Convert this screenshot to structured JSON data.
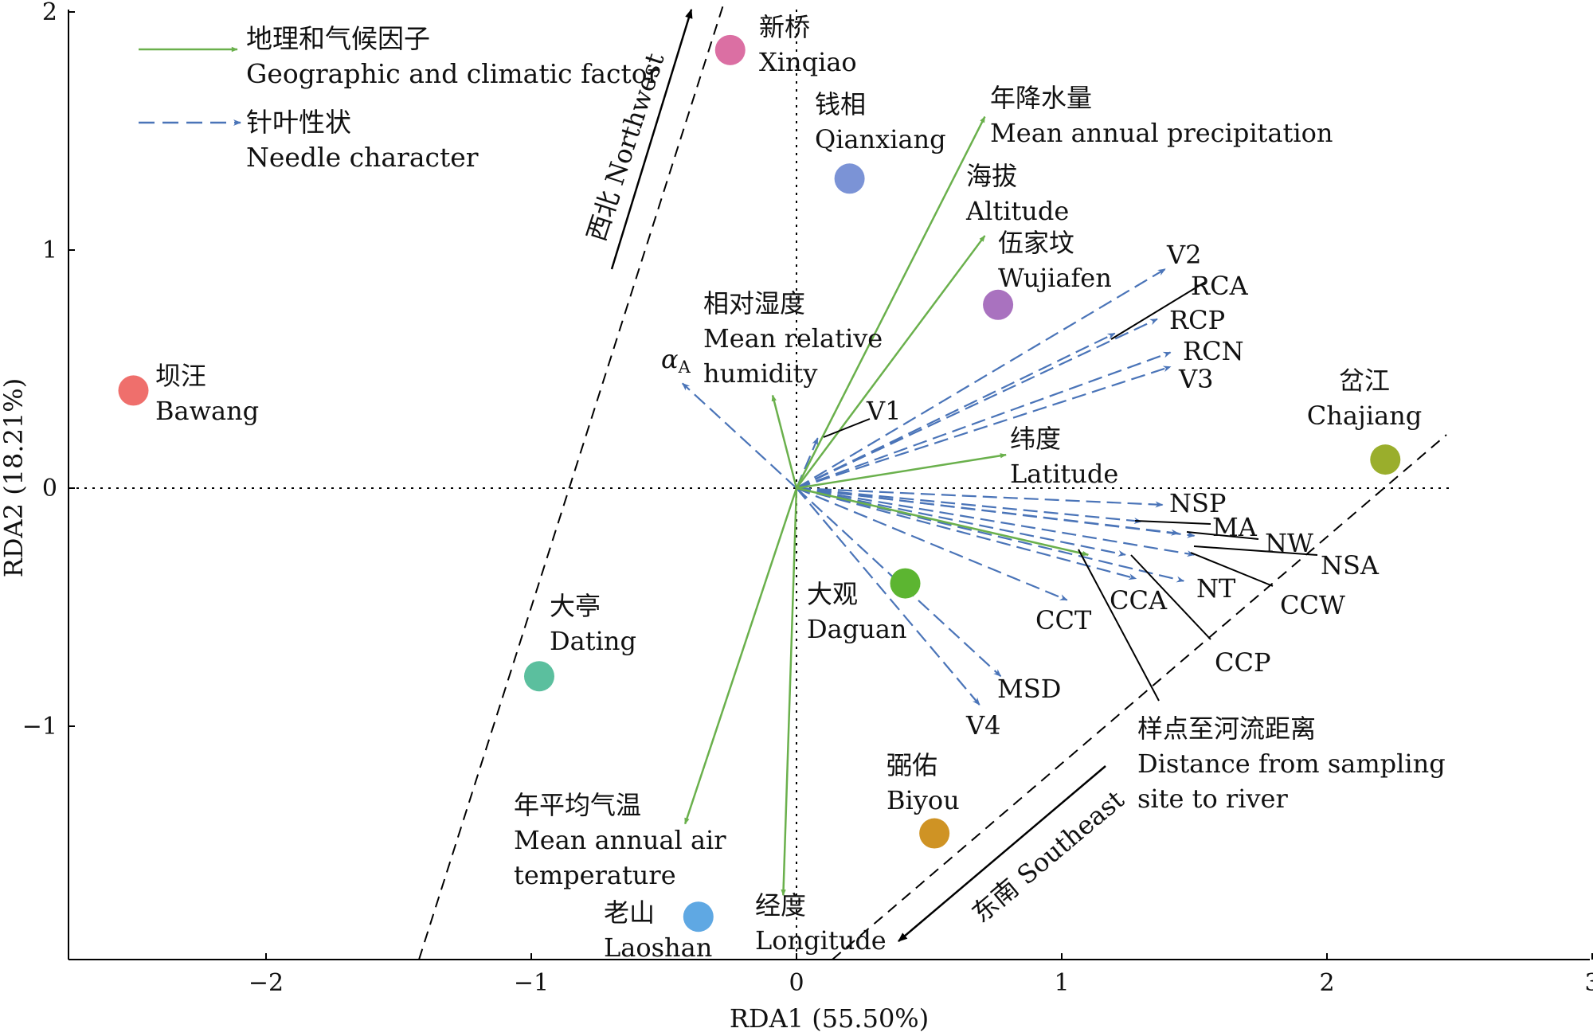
{
  "chart_data": {
    "type": "scatter",
    "subtype": "RDA biplot",
    "xlabel": "RDA1 (55.50%)",
    "ylabel": "RDA2 (18.21%)",
    "xlim": [
      -2.75,
      3.0
    ],
    "ylim": [
      -1.98,
      2.0
    ],
    "xticks": [
      -2,
      -1,
      0,
      1,
      2,
      3
    ],
    "yticks": [
      -1,
      0,
      1,
      2
    ],
    "reference_lines": "dotted lines at x=0 and y=0",
    "legend": {
      "position": "top-left",
      "entries": [
        {
          "zh": "地理和气候因子",
          "en": "Geographic and climatic factor",
          "style": "solid",
          "color": "#6ab04c"
        },
        {
          "zh": "针叶性状",
          "en": "Needle character",
          "style": "dashed",
          "color": "#4a74b8"
        }
      ]
    },
    "sites": [
      {
        "zh": "坝汪",
        "en": "Bawang",
        "x": -2.5,
        "y": 0.41,
        "color": "#ef6f6c"
      },
      {
        "zh": "新桥",
        "en": "Xinqiao",
        "x": -0.25,
        "y": 1.84,
        "color": "#db6fa3"
      },
      {
        "zh": "钱相",
        "en": "Qianxiang",
        "x": 0.2,
        "y": 1.3,
        "color": "#7b93d6"
      },
      {
        "zh": "伍家坟",
        "en": "Wujiafen",
        "x": 0.76,
        "y": 0.77,
        "color": "#a972bf"
      },
      {
        "zh": "岔江",
        "en": "Chajiang",
        "x": 2.22,
        "y": 0.12,
        "color": "#9aae2c"
      },
      {
        "zh": "大观",
        "en": "Daguan",
        "x": 0.41,
        "y": -0.4,
        "color": "#5cb531"
      },
      {
        "zh": "大亭",
        "en": "Dating",
        "x": -0.97,
        "y": -0.79,
        "color": "#5bbf9e"
      },
      {
        "zh": "弼佑",
        "en": "Biyou",
        "x": 0.52,
        "y": -1.45,
        "color": "#cf9324"
      },
      {
        "zh": "老山",
        "en": "Laoshan",
        "x": -0.37,
        "y": -1.8,
        "color": "#5fa8e3"
      }
    ],
    "factors": [
      {
        "zh": "年降水量",
        "en": "Mean annual precipitation",
        "x": 0.71,
        "y": 1.56
      },
      {
        "zh": "海拔",
        "en": "Altitude",
        "x": 0.71,
        "y": 1.06
      },
      {
        "zh": "相对湿度",
        "en": "Mean relative humidity",
        "x": -0.09,
        "y": 0.39
      },
      {
        "zh": "纬度",
        "en": "Latitude",
        "x": 0.79,
        "y": 0.14
      },
      {
        "zh": "样点至河流距离",
        "en": "Distance from sampling site to river",
        "x": 1.1,
        "y": -0.28
      },
      {
        "zh": "年平均气温",
        "en": "Mean annual air temperature",
        "x": -0.42,
        "y": -1.41
      },
      {
        "zh": "经度",
        "en": "Longitude",
        "x": -0.05,
        "y": -1.71
      }
    ],
    "needle_traits": [
      {
        "name": "αA",
        "x": -0.43,
        "y": 0.44
      },
      {
        "name": "V1",
        "x": 0.08,
        "y": 0.21
      },
      {
        "name": "V2",
        "x": 1.39,
        "y": 0.92
      },
      {
        "name": "RCA",
        "x": 1.2,
        "y": 0.65
      },
      {
        "name": "RCP",
        "x": 1.36,
        "y": 0.71
      },
      {
        "name": "RCN",
        "x": 1.41,
        "y": 0.57
      },
      {
        "name": "V3",
        "x": 1.41,
        "y": 0.51
      },
      {
        "name": "NSP",
        "x": 1.38,
        "y": -0.07
      },
      {
        "name": "MA",
        "x": 1.3,
        "y": -0.14
      },
      {
        "name": "NW",
        "x": 1.5,
        "y": -0.2
      },
      {
        "name": "NSA",
        "x": 1.44,
        "y": -0.19
      },
      {
        "name": "CCW",
        "x": 1.5,
        "y": -0.28
      },
      {
        "name": "NT",
        "x": 1.46,
        "y": -0.39
      },
      {
        "name": "CCA",
        "x": 1.28,
        "y": -0.38
      },
      {
        "name": "CCP",
        "x": 1.24,
        "y": -0.28
      },
      {
        "name": "CCT",
        "x": 1.02,
        "y": -0.47
      },
      {
        "name": "MSD",
        "x": 0.77,
        "y": -0.79
      },
      {
        "name": "V4",
        "x": 0.69,
        "y": -0.91
      }
    ],
    "annotations": [
      {
        "text": "西北 Northwest"
      },
      {
        "text": "东南 Southeast"
      }
    ]
  }
}
